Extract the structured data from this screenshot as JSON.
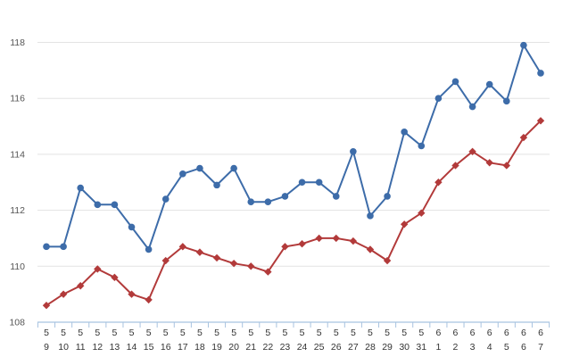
{
  "chart_data": {
    "type": "line",
    "title": "",
    "xlabel": "",
    "ylabel": "",
    "ylim": [
      108,
      118.5
    ],
    "y_ticks": [
      108,
      110,
      112,
      114,
      116,
      118
    ],
    "grid": "horizontal",
    "legend": "none",
    "categories": [
      {
        "month": "5",
        "day": "9"
      },
      {
        "month": "5",
        "day": "10"
      },
      {
        "month": "5",
        "day": "11"
      },
      {
        "month": "5",
        "day": "12"
      },
      {
        "month": "5",
        "day": "13"
      },
      {
        "month": "5",
        "day": "14"
      },
      {
        "month": "5",
        "day": "15"
      },
      {
        "month": "5",
        "day": "16"
      },
      {
        "month": "5",
        "day": "17"
      },
      {
        "month": "5",
        "day": "18"
      },
      {
        "month": "5",
        "day": "19"
      },
      {
        "month": "5",
        "day": "20"
      },
      {
        "month": "5",
        "day": "21"
      },
      {
        "month": "5",
        "day": "22"
      },
      {
        "month": "5",
        "day": "23"
      },
      {
        "month": "5",
        "day": "24"
      },
      {
        "month": "5",
        "day": "25"
      },
      {
        "month": "5",
        "day": "26"
      },
      {
        "month": "5",
        "day": "27"
      },
      {
        "month": "5",
        "day": "28"
      },
      {
        "month": "5",
        "day": "29"
      },
      {
        "month": "5",
        "day": "30"
      },
      {
        "month": "5",
        "day": "31"
      },
      {
        "month": "6",
        "day": "1"
      },
      {
        "month": "6",
        "day": "2"
      },
      {
        "month": "6",
        "day": "3"
      },
      {
        "month": "6",
        "day": "4"
      },
      {
        "month": "6",
        "day": "5"
      },
      {
        "month": "6",
        "day": "6"
      },
      {
        "month": "6",
        "day": "7"
      }
    ],
    "series": [
      {
        "color": "#3d6ca9",
        "marker": "circle",
        "values": [
          110.7,
          110.7,
          112.8,
          112.2,
          112.2,
          111.4,
          110.6,
          112.4,
          113.3,
          113.5,
          112.9,
          113.5,
          112.3,
          112.3,
          112.5,
          113.0,
          113.0,
          112.5,
          114.1,
          111.8,
          112.5,
          114.8,
          114.3,
          116.0,
          116.6,
          115.7,
          116.5,
          115.9,
          117.9,
          116.9
        ]
      },
      {
        "color": "#b23a3a",
        "marker": "diamond",
        "values": [
          108.6,
          109.0,
          109.3,
          109.9,
          109.6,
          109.0,
          108.8,
          110.2,
          110.7,
          110.5,
          110.3,
          110.1,
          110.0,
          109.8,
          110.7,
          110.8,
          111.0,
          111.0,
          110.9,
          110.6,
          110.2,
          111.5,
          111.9,
          113.0,
          113.6,
          114.1,
          113.7,
          113.6,
          114.6,
          115.2
        ]
      }
    ]
  }
}
